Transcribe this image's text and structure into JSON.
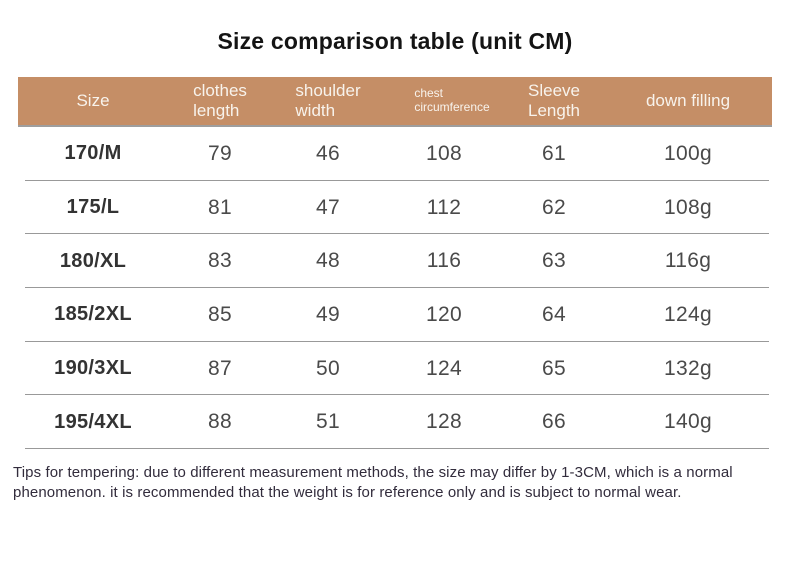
{
  "title": "Size comparison table (unit CM)",
  "table": {
    "columns": [
      {
        "key": "size",
        "label": "Size"
      },
      {
        "key": "clothes_length",
        "label": "clothes\nlength"
      },
      {
        "key": "shoulder_width",
        "label": "shoulder\nwidth"
      },
      {
        "key": "chest_circumference",
        "label": "chest\ncircumference"
      },
      {
        "key": "sleeve_length",
        "label": "Sleeve\nLength"
      },
      {
        "key": "down_filling",
        "label": "down filling"
      }
    ],
    "rows": [
      [
        "170/M",
        "79",
        "46",
        "108",
        "61",
        "100g"
      ],
      [
        "175/L",
        "81",
        "47",
        "112",
        "62",
        "108g"
      ],
      [
        "180/XL",
        "83",
        "48",
        "116",
        "63",
        "116g"
      ],
      [
        "185/2XL",
        "85",
        "49",
        "120",
        "64",
        "124g"
      ],
      [
        "190/3XL",
        "87",
        "50",
        "124",
        "65",
        "132g"
      ],
      [
        "195/4XL",
        "88",
        "51",
        "128",
        "66",
        "140g"
      ]
    ]
  },
  "tips": "Tips for tempering: due to different measurement methods, the size may differ by 1-3CM, which is a normal phenomenon. it is recommended that the weight is for reference only and is subject to normal wear.",
  "colors": {
    "header_bg": "#c58e66",
    "header_text": "#f8f3ec",
    "divider": "#999999",
    "size_text": "#333333",
    "value_text": "#4a4a4a",
    "tips_text": "#322c3c",
    "title_text": "#141414"
  }
}
